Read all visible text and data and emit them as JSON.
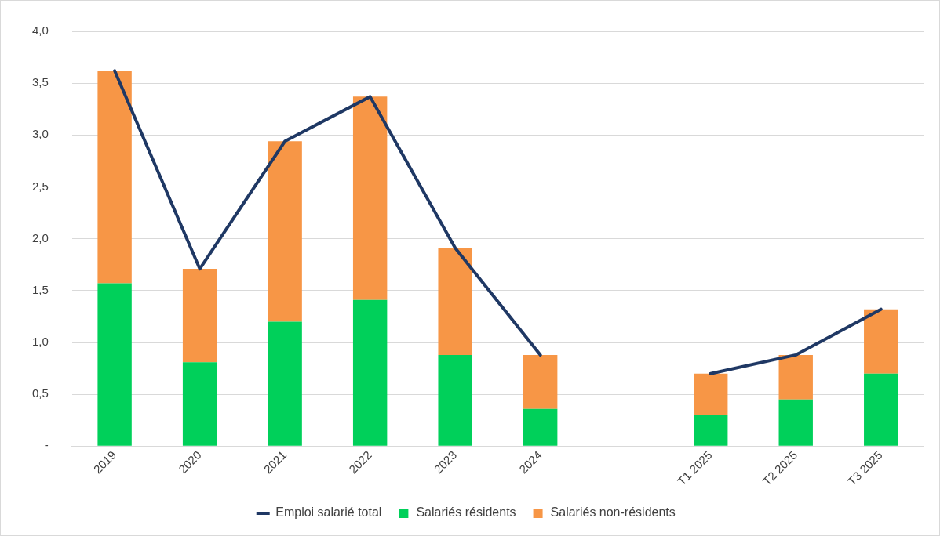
{
  "chart_data": {
    "type": "bar",
    "categories": [
      "2019",
      "2020",
      "2021",
      "2022",
      "2023",
      "2024",
      null,
      "T1 2025",
      "T2 2025",
      "T3 2025"
    ],
    "series": [
      {
        "name": "Salariés résidents",
        "color": "#00d05a",
        "values": [
          1.57,
          0.81,
          1.2,
          1.41,
          0.88,
          0.36,
          null,
          0.3,
          0.45,
          0.7
        ]
      },
      {
        "name": "Salariés non-résidents",
        "color": "#f79646",
        "values": [
          2.05,
          0.9,
          1.74,
          1.96,
          1.03,
          0.52,
          null,
          0.4,
          0.43,
          0.62
        ]
      },
      {
        "name": "Emploi salarié total",
        "type": "line",
        "color": "#1f3864",
        "values": [
          3.62,
          1.71,
          2.94,
          3.37,
          1.91,
          0.88,
          null,
          0.7,
          0.88,
          1.32
        ]
      }
    ],
    "stacked": true,
    "ylim": [
      0,
      4
    ],
    "yticks": [
      {
        "value": 0,
        "label": "-"
      },
      {
        "value": 0.5,
        "label": "0,5"
      },
      {
        "value": 1,
        "label": "1,0"
      },
      {
        "value": 1.5,
        "label": "1,5"
      },
      {
        "value": 2,
        "label": "2,0"
      },
      {
        "value": 2.5,
        "label": "2,5"
      },
      {
        "value": 3,
        "label": "3,0"
      },
      {
        "value": 3.5,
        "label": "3,5"
      },
      {
        "value": 4,
        "label": "4,0"
      }
    ],
    "grid": "y",
    "legend": "bottom",
    "marker": "none"
  }
}
